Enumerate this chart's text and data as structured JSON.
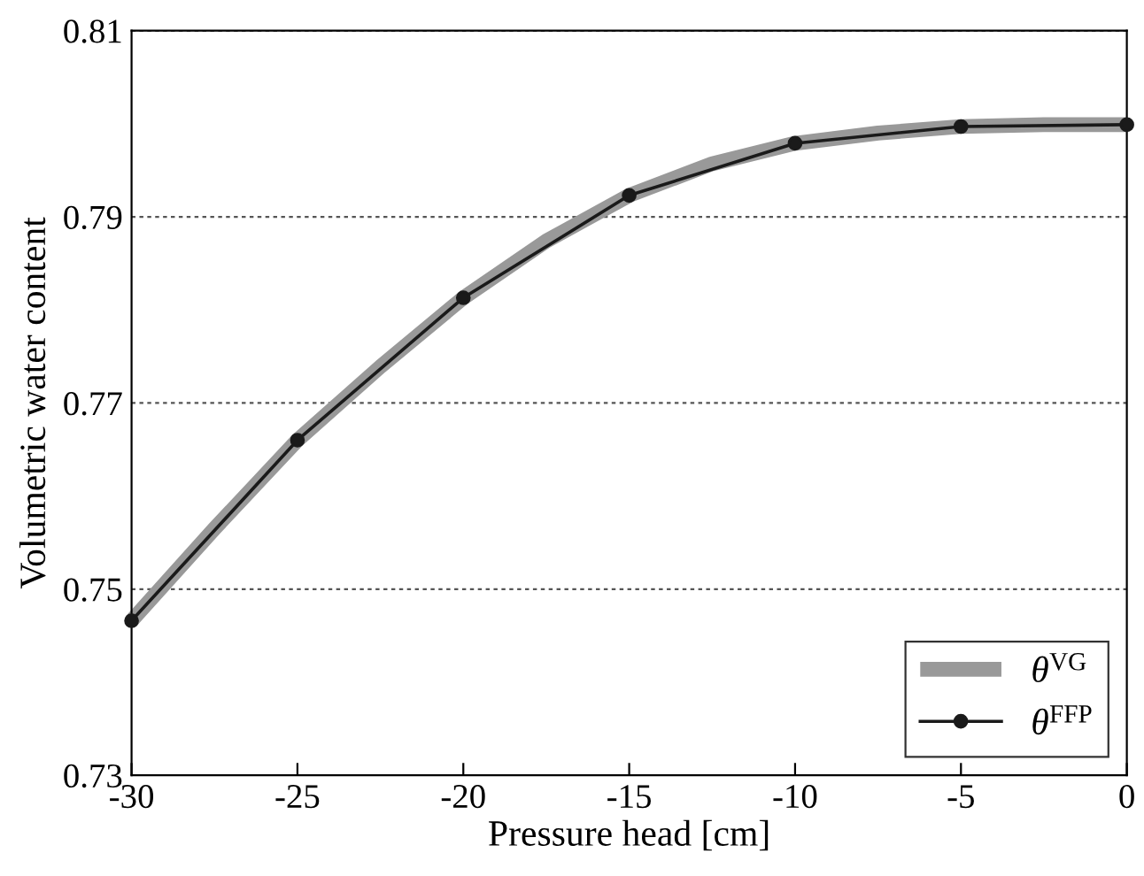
{
  "chart_data": {
    "type": "line",
    "xlabel": "Pressure head [cm]",
    "ylabel": "Volumetric water content",
    "xlim": [
      -30,
      0
    ],
    "xticks": [
      -30,
      -25,
      -20,
      -15,
      -10,
      -5,
      0
    ],
    "ylim": [
      0.73,
      0.81
    ],
    "yticks": [
      0.73,
      0.75,
      0.77,
      0.79,
      0.81
    ],
    "grid": "y",
    "legend": "bottom right",
    "series": [
      {
        "name": "θ$^{VG}$",
        "color": "#999999",
        "marker": "none",
        "x": [
          -30,
          -27.5,
          -25,
          -22.5,
          -20,
          -17.5,
          -15,
          -12.5,
          -10,
          -7.5,
          -5,
          -2.5,
          0
        ],
        "values": [
          0.7466,
          0.7565,
          0.766,
          0.7739,
          0.7813,
          0.7874,
          0.7923,
          0.7957,
          0.7979,
          0.799,
          0.7997,
          0.7999,
          0.7999
        ]
      },
      {
        "name": "θ$^{FFP}$",
        "color": "#1a1a1a",
        "marker": "circle",
        "x": [
          -30,
          -25,
          -20,
          -15,
          -10,
          -5,
          0
        ],
        "values": [
          0.7466,
          0.766,
          0.7813,
          0.7923,
          0.7979,
          0.7997,
          0.7999
        ]
      }
    ]
  }
}
